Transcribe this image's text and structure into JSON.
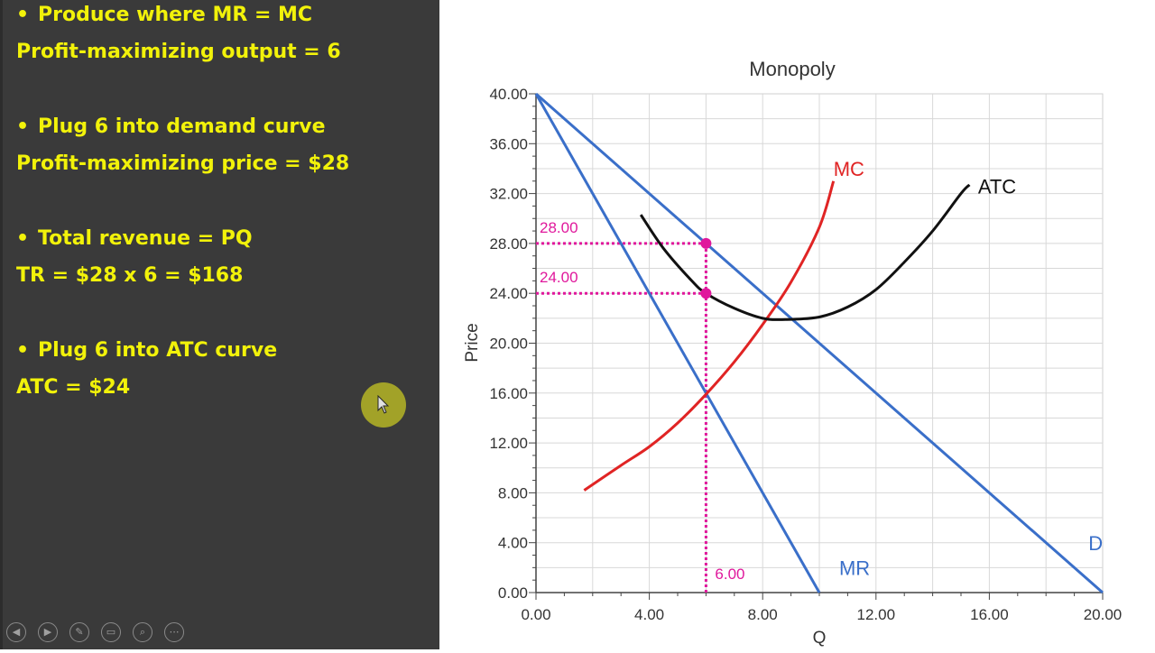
{
  "slide": {
    "lines": [
      {
        "bullet": true,
        "text": "Produce where MR = MC"
      },
      {
        "bullet": false,
        "text": "Profit-maximizing output = 6"
      },
      {
        "bullet": true,
        "text": "Plug 6 into demand curve"
      },
      {
        "bullet": false,
        "text": "Profit-maximizing price = $28"
      },
      {
        "bullet": true,
        "text": "Total revenue = PQ"
      },
      {
        "bullet": false,
        "text": "TR = $28 x 6 = $168"
      },
      {
        "bullet": true,
        "text": "Plug 6 into ATC curve"
      },
      {
        "bullet": false,
        "text": "ATC = $24"
      }
    ],
    "bullet_symbol": "•",
    "text_color": "#f2f20a",
    "background_color": "#3a3a3a"
  },
  "controls": {
    "icons": [
      "previous-icon",
      "next-icon",
      "pen-icon",
      "slides-icon",
      "zoom-icon",
      "more-icon"
    ],
    "glyphs": [
      "◀",
      "▶",
      "✎",
      "▭",
      "⌕",
      "⋯"
    ]
  },
  "chart_data": {
    "type": "line",
    "title": "Monopoly",
    "xlabel": "Q",
    "ylabel": "Price",
    "xlim": [
      0,
      20
    ],
    "ylim": [
      0,
      40
    ],
    "grid": true,
    "x_ticks": [
      "0.00",
      "4.00",
      "8.00",
      "12.00",
      "16.00",
      "20.00"
    ],
    "y_ticks": [
      "0.00",
      "4.00",
      "8.00",
      "12.00",
      "16.00",
      "20.00",
      "24.00",
      "28.00",
      "32.00",
      "36.00",
      "40.00"
    ],
    "series": [
      {
        "name": "D",
        "color": "#3a6fc9",
        "x": [
          0,
          20
        ],
        "y": [
          40,
          0
        ]
      },
      {
        "name": "MR",
        "color": "#3a6fc9",
        "x": [
          0,
          10
        ],
        "y": [
          40,
          0
        ]
      },
      {
        "name": "MC",
        "color": "#e02424",
        "x": [
          1.7,
          3,
          4,
          5,
          6,
          7,
          8,
          9,
          10,
          10.5
        ],
        "y": [
          8.2,
          10.2,
          11.7,
          13.6,
          15.9,
          18.5,
          21.5,
          24.9,
          29.3,
          33.0
        ]
      },
      {
        "name": "ATC",
        "color": "#111111",
        "x": [
          3.7,
          4.5,
          5.5,
          6,
          7,
          8,
          8.8,
          10,
          11,
          12,
          13,
          14,
          15,
          15.3
        ],
        "y": [
          30.3,
          27.6,
          25.0,
          24.0,
          22.8,
          22.0,
          21.9,
          22.1,
          22.9,
          24.3,
          26.5,
          29.0,
          32.0,
          32.7
        ]
      }
    ],
    "points": [
      {
        "x": 6,
        "y": 28,
        "color": "#e0189c"
      },
      {
        "x": 6,
        "y": 24,
        "color": "#e0189c"
      }
    ],
    "reference_lines": [
      {
        "from": [
          0,
          28
        ],
        "to": [
          6,
          28
        ],
        "label": "28.00"
      },
      {
        "from": [
          0,
          24
        ],
        "to": [
          6,
          24
        ],
        "label": "24.00"
      },
      {
        "from": [
          6,
          0
        ],
        "to": [
          6,
          28
        ],
        "label": "6.00"
      }
    ],
    "reference_color": "#e0189c",
    "curve_labels": [
      {
        "text": "MC",
        "x": 10.5,
        "y": 33.4,
        "color": "#e02424"
      },
      {
        "text": "ATC",
        "x": 15.6,
        "y": 32.0,
        "color": "#111111"
      },
      {
        "text": "MR",
        "x": 10.7,
        "y": 1.4,
        "color": "#3a6fc9"
      },
      {
        "text": "D",
        "x": 19.5,
        "y": 3.4,
        "color": "#3a6fc9"
      }
    ]
  }
}
